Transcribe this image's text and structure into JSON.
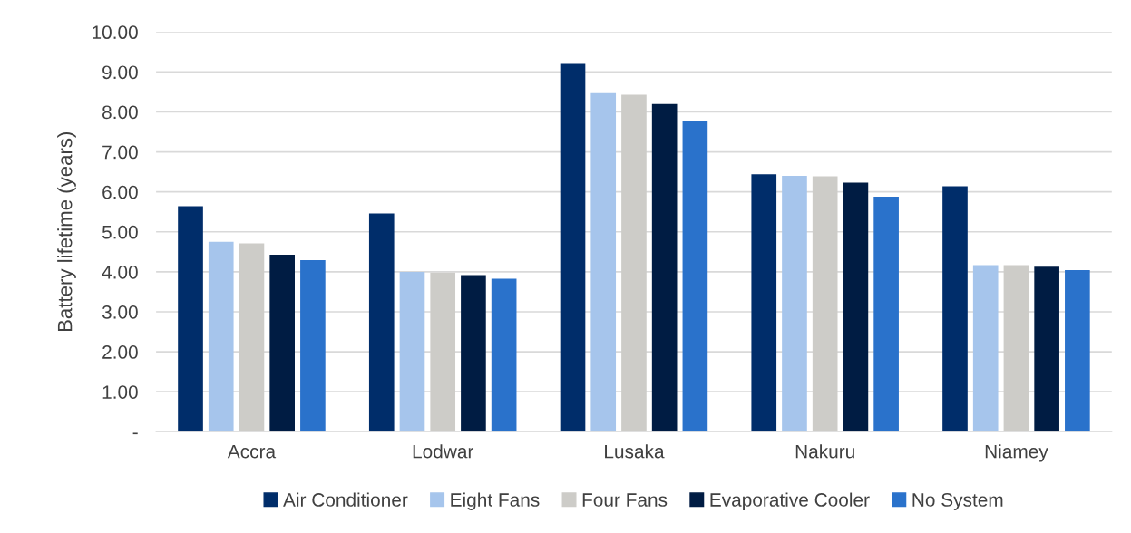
{
  "chart_data": {
    "type": "bar",
    "ylabel": "Battery lifetime (years)",
    "categories": [
      "Accra",
      "Lodwar",
      "Lusaka",
      "Nakuru",
      "Niamey"
    ],
    "series": [
      {
        "name": "Air Conditioner",
        "color": "#002d6a",
        "values": [
          5.64,
          5.46,
          9.2,
          6.44,
          6.14
        ]
      },
      {
        "name": "Eight Fans",
        "color": "#a6c5ec",
        "values": [
          4.75,
          4.0,
          8.47,
          6.4,
          4.17
        ]
      },
      {
        "name": "Four Fans",
        "color": "#cdccc8",
        "values": [
          4.71,
          3.98,
          8.43,
          6.39,
          4.17
        ]
      },
      {
        "name": "Evaporative Cooler",
        "color": "#001c43",
        "values": [
          4.43,
          3.92,
          8.2,
          6.23,
          4.13
        ]
      },
      {
        "name": "No System",
        "color": "#2a72cb",
        "values": [
          4.29,
          3.83,
          7.78,
          5.88,
          4.04
        ]
      }
    ],
    "ylim": [
      0,
      10
    ],
    "yticks": [
      {
        "value": 0,
        "label": "-"
      },
      {
        "value": 1,
        "label": "1.00"
      },
      {
        "value": 2,
        "label": "2.00"
      },
      {
        "value": 3,
        "label": "3.00"
      },
      {
        "value": 4,
        "label": "4.00"
      },
      {
        "value": 5,
        "label": "5.00"
      },
      {
        "value": 6,
        "label": "6.00"
      },
      {
        "value": 7,
        "label": "7.00"
      },
      {
        "value": 8,
        "label": "8.00"
      },
      {
        "value": 9,
        "label": "9.00"
      },
      {
        "value": 10,
        "label": "10.00"
      }
    ],
    "grid": "y",
    "legend": "bottom"
  }
}
